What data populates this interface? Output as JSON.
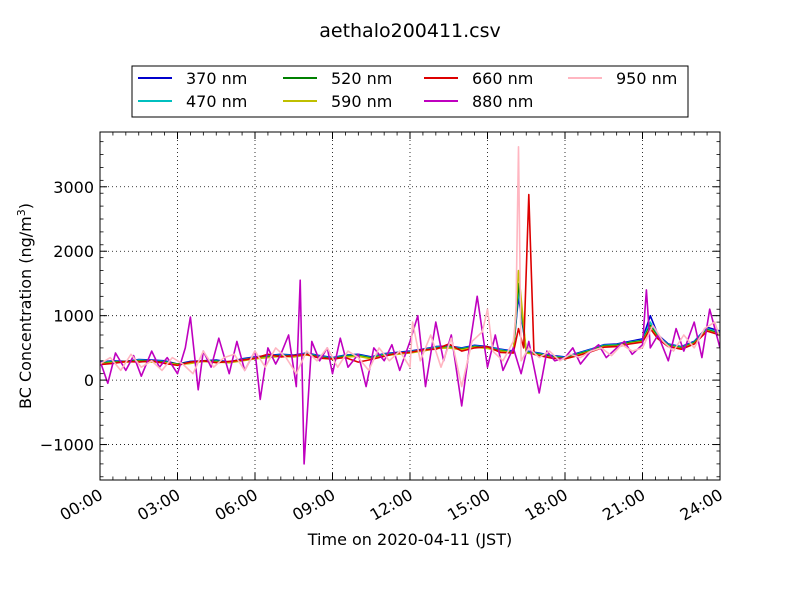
{
  "chart_data": {
    "type": "line",
    "title": "aethalo200411.csv",
    "xlabel": "Time on 2020-04-11 (JST)",
    "ylabel": "BC Concentration (ng/m",
    "ylabel_sup": "3",
    "ylabel_end": ")",
    "x_unit": "hours",
    "xlim": [
      0,
      24
    ],
    "ylim": [
      -1550,
      3850
    ],
    "x_ticks": [
      0,
      3,
      6,
      9,
      12,
      15,
      18,
      21,
      24
    ],
    "x_tick_labels": [
      "00:00",
      "03:00",
      "06:00",
      "09:00",
      "12:00",
      "15:00",
      "18:00",
      "21:00",
      "24:00"
    ],
    "y_ticks": [
      -1000,
      0,
      1000,
      2000,
      3000
    ],
    "y_tick_labels": [
      "−1000",
      "0",
      "1000",
      "2000",
      "3000"
    ],
    "grid": true,
    "legend_position": "top-center",
    "series": [
      {
        "name": "370 nm",
        "color": "#0000cc",
        "x": [
          0,
          0.5,
          1,
          1.5,
          2,
          2.5,
          3,
          3.5,
          4,
          4.5,
          5,
          5.5,
          6,
          6.5,
          7,
          7.5,
          8,
          8.5,
          9,
          9.5,
          10,
          10.5,
          11,
          11.5,
          12,
          12.5,
          13,
          13.5,
          14,
          14.5,
          15,
          15.5,
          16,
          16.2,
          16.5,
          17,
          17.5,
          18,
          18.5,
          19,
          19.5,
          20,
          20.5,
          21,
          21.3,
          21.6,
          22,
          22.5,
          23,
          23.5,
          24
        ],
        "y": [
          280,
          300,
          290,
          320,
          310,
          300,
          250,
          290,
          300,
          310,
          280,
          330,
          360,
          380,
          400,
          390,
          420,
          380,
          350,
          390,
          400,
          360,
          410,
          430,
          450,
          480,
          520,
          530,
          500,
          540,
          520,
          480,
          450,
          1300,
          450,
          420,
          380,
          360,
          420,
          480,
          550,
          560,
          600,
          640,
          1000,
          700,
          560,
          520,
          600,
          820,
          760
        ]
      },
      {
        "name": "470 nm",
        "color": "#00bfbf",
        "x": [
          0,
          0.5,
          1,
          1.5,
          2,
          2.5,
          3,
          3.5,
          4,
          4.5,
          5,
          5.5,
          6,
          6.5,
          7,
          7.5,
          8,
          8.5,
          9,
          9.5,
          10,
          10.5,
          11,
          11.5,
          12,
          12.5,
          13,
          13.5,
          14,
          14.5,
          15,
          15.5,
          16,
          16.2,
          16.5,
          17,
          17.5,
          18,
          18.5,
          19,
          19.5,
          20,
          20.5,
          21,
          21.3,
          21.6,
          22,
          22.5,
          23,
          23.5,
          24
        ],
        "y": [
          270,
          290,
          280,
          310,
          300,
          290,
          240,
          280,
          290,
          300,
          270,
          320,
          350,
          370,
          390,
          380,
          410,
          370,
          340,
          380,
          390,
          350,
          400,
          420,
          440,
          470,
          510,
          520,
          490,
          530,
          510,
          470,
          440,
          1400,
          440,
          410,
          370,
          350,
          410,
          470,
          540,
          550,
          590,
          620,
          900,
          680,
          550,
          510,
          590,
          800,
          740
        ]
      },
      {
        "name": "520 nm",
        "color": "#008000",
        "x": [
          0,
          0.5,
          1,
          1.5,
          2,
          2.5,
          3,
          3.5,
          4,
          4.5,
          5,
          5.5,
          6,
          6.5,
          7,
          7.5,
          8,
          8.5,
          9,
          9.5,
          10,
          10.5,
          11,
          11.5,
          12,
          12.5,
          13,
          13.5,
          14,
          14.5,
          15,
          15.5,
          16,
          16.2,
          16.5,
          17,
          17.5,
          18,
          18.5,
          19,
          19.5,
          20,
          20.5,
          21,
          21.3,
          21.6,
          22,
          22.5,
          23,
          23.5,
          24
        ],
        "y": [
          260,
          280,
          290,
          300,
          290,
          280,
          250,
          270,
          300,
          290,
          280,
          310,
          340,
          360,
          380,
          370,
          400,
          360,
          330,
          370,
          380,
          340,
          390,
          410,
          430,
          460,
          500,
          510,
          480,
          520,
          500,
          460,
          430,
          1500,
          430,
          400,
          360,
          340,
          400,
          460,
          530,
          540,
          580,
          610,
          850,
          660,
          540,
          500,
          580,
          780,
          720
        ]
      },
      {
        "name": "590 nm",
        "color": "#bfbf00",
        "x": [
          0,
          0.5,
          1,
          1.5,
          2,
          2.5,
          3,
          3.5,
          4,
          4.5,
          5,
          5.5,
          6,
          6.5,
          7,
          7.5,
          8,
          8.5,
          9,
          9.5,
          10,
          10.5,
          11,
          11.5,
          12,
          12.5,
          13,
          13.5,
          14,
          14.5,
          15,
          15.5,
          16,
          16.2,
          16.5,
          17,
          17.5,
          18,
          18.5,
          19,
          19.5,
          20,
          20.5,
          21,
          21.3,
          21.6,
          22,
          22.5,
          23,
          23.5,
          24
        ],
        "y": [
          250,
          270,
          280,
          290,
          280,
          270,
          240,
          260,
          290,
          280,
          270,
          300,
          330,
          350,
          370,
          360,
          390,
          350,
          320,
          360,
          370,
          330,
          380,
          400,
          420,
          450,
          490,
          500,
          470,
          510,
          490,
          450,
          420,
          1700,
          420,
          390,
          350,
          330,
          390,
          450,
          520,
          530,
          570,
          600,
          820,
          650,
          530,
          490,
          570,
          770,
          710
        ]
      },
      {
        "name": "660 nm",
        "color": "#dd0000",
        "x": [
          0,
          0.5,
          1,
          1.5,
          2,
          2.5,
          3,
          3.5,
          4,
          4.5,
          5,
          5.5,
          6,
          6.5,
          7,
          7.5,
          8,
          8.5,
          9,
          9.5,
          10,
          10.5,
          11,
          11.5,
          12,
          12.5,
          13,
          13.5,
          14,
          14.5,
          15,
          15.5,
          16,
          16.2,
          16.4,
          16.6,
          16.8,
          17,
          17.5,
          18,
          18.5,
          19,
          19.5,
          20,
          20.5,
          21,
          21.3,
          21.6,
          22,
          22.5,
          23,
          23.5,
          24
        ],
        "y": [
          240,
          260,
          290,
          280,
          300,
          260,
          230,
          280,
          300,
          270,
          290,
          310,
          340,
          400,
          360,
          380,
          400,
          340,
          330,
          350,
          280,
          320,
          370,
          420,
          430,
          470,
          480,
          560,
          450,
          500,
          520,
          430,
          420,
          800,
          500,
          2880,
          400,
          380,
          340,
          330,
          380,
          440,
          510,
          520,
          560,
          590,
          800,
          640,
          520,
          480,
          560,
          760,
          700
        ]
      },
      {
        "name": "880 nm",
        "color": "#bf00bf",
        "x": [
          0,
          0.3,
          0.6,
          1,
          1.3,
          1.6,
          2,
          2.3,
          2.6,
          3,
          3.3,
          3.5,
          3.8,
          4,
          4.3,
          4.6,
          5,
          5.3,
          5.6,
          6,
          6.2,
          6.5,
          6.8,
          7,
          7.3,
          7.6,
          7.75,
          7.9,
          8.2,
          8.5,
          8.8,
          9,
          9.3,
          9.6,
          10,
          10.3,
          10.6,
          11,
          11.3,
          11.6,
          12,
          12.3,
          12.6,
          13,
          13.3,
          13.6,
          14,
          14.3,
          14.6,
          15,
          15.3,
          15.6,
          16,
          16.3,
          16.6,
          17,
          17.3,
          17.6,
          18,
          18.3,
          18.6,
          19,
          19.3,
          19.6,
          20,
          20.3,
          20.6,
          21,
          21.15,
          21.3,
          21.6,
          22,
          22.3,
          22.6,
          23,
          23.3,
          23.6,
          24
        ],
        "y": [
          300,
          -50,
          420,
          150,
          380,
          60,
          450,
          200,
          350,
          100,
          500,
          980,
          -150,
          450,
          200,
          650,
          100,
          600,
          150,
          450,
          -300,
          500,
          250,
          400,
          700,
          -100,
          1550,
          -1300,
          600,
          300,
          500,
          100,
          650,
          200,
          400,
          -100,
          500,
          300,
          550,
          150,
          600,
          1000,
          -100,
          900,
          300,
          700,
          -400,
          500,
          1300,
          200,
          700,
          150,
          500,
          100,
          600,
          -200,
          450,
          300,
          350,
          500,
          250,
          450,
          550,
          350,
          500,
          600,
          400,
          550,
          1400,
          500,
          700,
          300,
          800,
          450,
          900,
          350,
          1100,
          500
        ]
      },
      {
        "name": "950 nm",
        "color": "#ffb6c1",
        "x": [
          0,
          0.4,
          0.8,
          1.2,
          1.6,
          2,
          2.4,
          2.8,
          3.2,
          3.6,
          4,
          4.4,
          4.8,
          5.2,
          5.6,
          6,
          6.4,
          6.8,
          7.2,
          7.6,
          8,
          8.4,
          8.8,
          9.2,
          9.6,
          10,
          10.4,
          10.8,
          11.2,
          11.6,
          12,
          12.1,
          12.4,
          12.8,
          13.2,
          13.6,
          14,
          14.4,
          14.8,
          15,
          15.2,
          15.6,
          16,
          16.1,
          16.2,
          16.3,
          16.6,
          17,
          17.4,
          17.8,
          18.2,
          18.6,
          19,
          19.4,
          19.8,
          20.2,
          20.6,
          21,
          21.4,
          21.8,
          22.2,
          22.6,
          23,
          23.4,
          23.8,
          24
        ],
        "y": [
          250,
          350,
          150,
          400,
          200,
          300,
          150,
          350,
          250,
          100,
          450,
          200,
          350,
          400,
          150,
          450,
          200,
          500,
          350,
          100,
          450,
          300,
          500,
          200,
          450,
          350,
          150,
          500,
          300,
          450,
          200,
          900,
          300,
          700,
          200,
          650,
          -100,
          600,
          750,
          1100,
          450,
          300,
          600,
          1000,
          3620,
          300,
          500,
          350,
          450,
          300,
          400,
          350,
          450,
          500,
          380,
          550,
          450,
          500,
          850,
          600,
          450,
          700,
          500,
          800,
          900,
          650
        ]
      }
    ]
  }
}
